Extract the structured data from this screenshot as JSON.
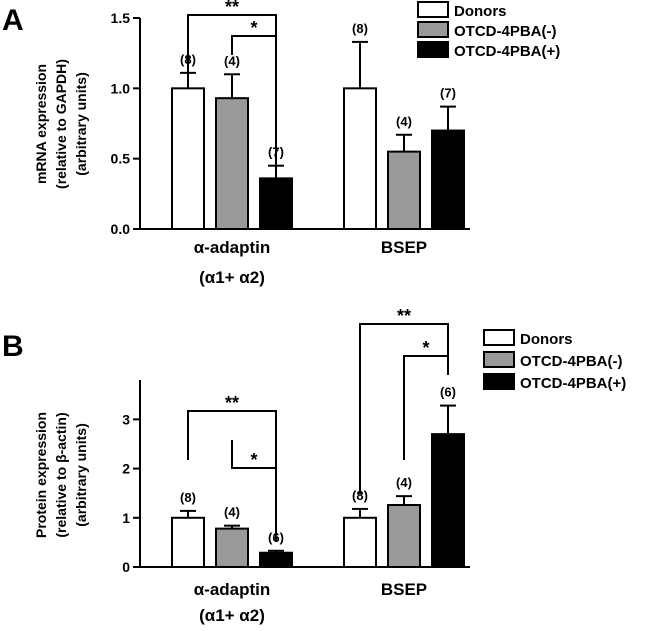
{
  "chart_data": [
    {
      "panel": "A",
      "type": "bar",
      "ylabel_lines": [
        "mRNA expression",
        "(relative to GAPDH)",
        "(arbitrary units)"
      ],
      "ylim": [
        0,
        1.5
      ],
      "yticks": [
        "0.0",
        "0.5",
        "1.0",
        "1.5"
      ],
      "categories": [
        {
          "lines": [
            "α-adaptin",
            "(α1+ α2)"
          ]
        },
        {
          "lines": [
            "BSEP"
          ]
        }
      ],
      "series": [
        {
          "name": "Donors",
          "color": "#ffffff",
          "values": [
            1.0,
            1.0
          ],
          "errors": [
            0.11,
            0.33
          ],
          "n": [
            "(8)",
            "(8)"
          ]
        },
        {
          "name": "OTCD-4PBA(-)",
          "color": "#999999",
          "values": [
            0.93,
            0.55
          ],
          "errors": [
            0.17,
            0.12
          ],
          "n": [
            "(4)",
            "(4)"
          ]
        },
        {
          "name": "OTCD-4PBA(+)",
          "color": "#000000",
          "values": [
            0.36,
            0.7
          ],
          "errors": [
            0.09,
            0.17
          ],
          "n": [
            "(7)",
            "(7)"
          ]
        }
      ],
      "legend_position": "top-right",
      "significance": [
        {
          "category": 0,
          "from": 0,
          "to": 2,
          "label": "**"
        },
        {
          "category": 0,
          "from": 1,
          "to": 2,
          "label": "*"
        }
      ]
    },
    {
      "panel": "B",
      "type": "bar",
      "ylabel_lines": [
        "Protein expression",
        "(relative to β-actin)",
        "(arbitrary units)"
      ],
      "ylim": [
        0,
        3.8
      ],
      "yticks": [
        "0",
        "1",
        "2",
        "3"
      ],
      "categories": [
        {
          "lines": [
            "α-adaptin",
            "(α1+ α2)"
          ]
        },
        {
          "lines": [
            "BSEP"
          ]
        }
      ],
      "series": [
        {
          "name": "Donors",
          "color": "#ffffff",
          "values": [
            1.0,
            1.0
          ],
          "errors": [
            0.14,
            0.18
          ],
          "n": [
            "(8)",
            "(8)"
          ]
        },
        {
          "name": "OTCD-4PBA(-)",
          "color": "#999999",
          "values": [
            0.78,
            1.26
          ],
          "errors": [
            0.06,
            0.18
          ],
          "n": [
            "(4)",
            "(4)"
          ]
        },
        {
          "name": "OTCD-4PBA(+)",
          "color": "#000000",
          "values": [
            0.29,
            2.7
          ],
          "errors": [
            0.04,
            0.58
          ],
          "n": [
            "(6)",
            "(6)"
          ]
        }
      ],
      "legend_position": "top-right",
      "significance": [
        {
          "category": 0,
          "from": 0,
          "to": 2,
          "label": "**"
        },
        {
          "category": 0,
          "from": 1,
          "to": 2,
          "label": "*"
        },
        {
          "category": 1,
          "from": 0,
          "to": 2,
          "label": "**"
        },
        {
          "category": 1,
          "from": 1,
          "to": 2,
          "label": "*"
        }
      ]
    }
  ]
}
